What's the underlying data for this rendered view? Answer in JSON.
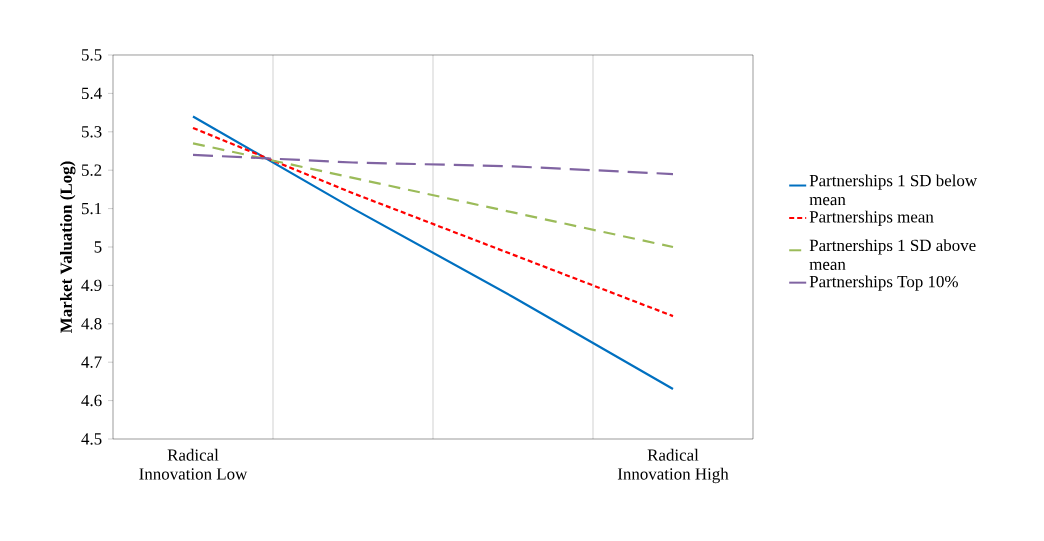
{
  "chart_data": {
    "type": "line",
    "ylabel": "Market Valuation (Log)",
    "categories": [
      "Radical Innovation Low",
      null,
      null,
      "Radical Innovation High"
    ],
    "ylim": [
      4.5,
      5.5
    ],
    "yticks": [
      4.5,
      4.6,
      4.7,
      4.8,
      4.9,
      5,
      5.1,
      5.2,
      5.3,
      5.4,
      5.5
    ],
    "grid": "x",
    "legend": "right",
    "marker": "none",
    "series": [
      {
        "name": "Partnerships 1 SD below mean",
        "color": "#0070c0",
        "line_style": "solid",
        "values": [
          5.34,
          5.1,
          4.87,
          4.63
        ]
      },
      {
        "name": "Partnerships mean",
        "color": "#ff0000",
        "line_style": "dashed",
        "values": [
          5.31,
          5.14,
          4.98,
          4.82
        ]
      },
      {
        "name": "Partnerships 1 SD above mean",
        "color": "#9bbb59",
        "line_style": "dashed",
        "values": [
          5.27,
          5.18,
          5.09,
          5.0
        ]
      },
      {
        "name": "Partnerships Top 10%",
        "color": "#8064a2",
        "line_style": "dashed",
        "values": [
          5.24,
          5.22,
          5.21,
          5.19
        ]
      }
    ]
  }
}
